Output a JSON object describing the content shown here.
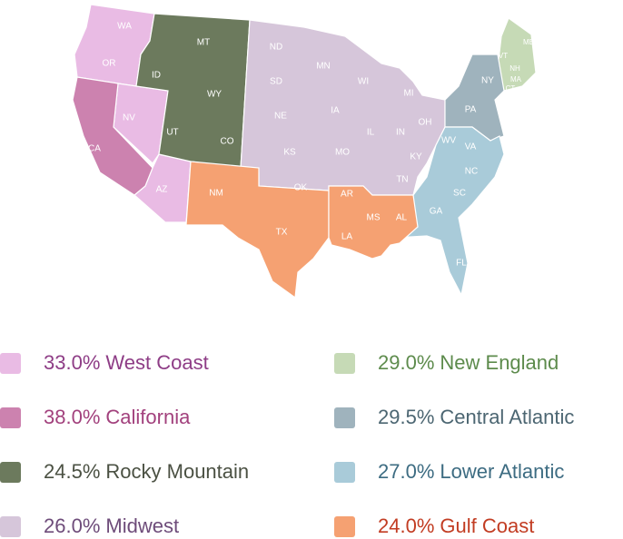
{
  "map": {
    "regions": [
      {
        "share": "33.0%",
        "name": "West Coast",
        "color": "#e9bbe4",
        "label_color": "#8e3d86",
        "states": [
          "WA",
          "OR",
          "NV",
          "AZ"
        ]
      },
      {
        "share": "38.0%",
        "name": "California",
        "color": "#cc82af",
        "label_color": "#a2417d",
        "states": [
          "CA"
        ]
      },
      {
        "share": "24.5%",
        "name": "Rocky Mountain",
        "color": "#6c7a5d",
        "label_color": "#4b5143",
        "states": [
          "ID",
          "MT",
          "WY",
          "UT",
          "CO"
        ]
      },
      {
        "share": "26.0%",
        "name": "Midwest",
        "color": "#d6c6da",
        "label_color": "#6e4c7a",
        "states": [
          "ND",
          "SD",
          "NE",
          "KS",
          "OK",
          "MN",
          "IA",
          "MO",
          "WI",
          "IL",
          "MI",
          "IN",
          "OH",
          "KY",
          "TN"
        ]
      },
      {
        "share": "29.0%",
        "name": "New England",
        "color": "#c6dab6",
        "label_color": "#5d8b4c",
        "states": [
          "ME",
          "VT",
          "NH",
          "MA",
          "CT"
        ]
      },
      {
        "share": "29.5%",
        "name": "Central Atlantic",
        "color": "#9fb3bd",
        "label_color": "#4c6672",
        "states": [
          "NY",
          "PA"
        ]
      },
      {
        "share": "27.0%",
        "name": "Lower Atlantic",
        "color": "#a9cbd9",
        "label_color": "#3d6c82",
        "states": [
          "WV",
          "VA",
          "NC",
          "SC",
          "GA",
          "FL"
        ]
      },
      {
        "share": "24.0%",
        "name": "Gulf Coast",
        "color": "#f5a172",
        "label_color": "#c23c22",
        "states": [
          "NM",
          "TX",
          "AR",
          "LA",
          "MS",
          "AL"
        ]
      }
    ]
  }
}
